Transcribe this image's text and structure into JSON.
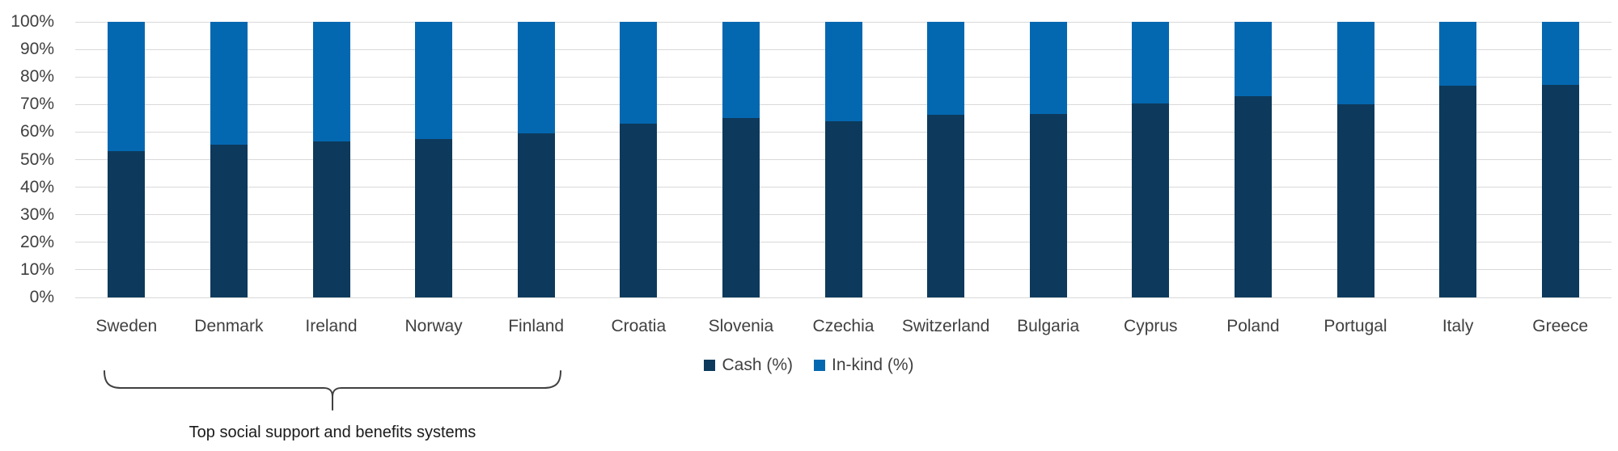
{
  "chart_data": {
    "type": "bar",
    "stacked": true,
    "percent_stacked": true,
    "categories": [
      "Sweden",
      "Denmark",
      "Ireland",
      "Norway",
      "Finland",
      "Croatia",
      "Slovenia",
      "Czechia",
      "Switzerland",
      "Bulgaria",
      "Cyprus",
      "Poland",
      "Portugal",
      "Italy",
      "Greece"
    ],
    "series": [
      {
        "name": "Cash (%)",
        "color": "#0d3a5c",
        "values": [
          53,
          55.5,
          56.5,
          57.5,
          59.6,
          63,
          65,
          64,
          66.3,
          66.7,
          70.4,
          72.9,
          70.1,
          76.8,
          77.2
        ]
      },
      {
        "name": "In-kind (%)",
        "color": "#0468b1",
        "values": [
          47,
          44.5,
          43.5,
          42.5,
          40.4,
          37,
          35,
          36,
          33.7,
          33.3,
          29.6,
          27.1,
          29.9,
          23.2,
          22.8
        ]
      }
    ],
    "title": "",
    "xlabel": "",
    "ylabel": "",
    "ylim": [
      0,
      100
    ],
    "y_tick_labels": [
      "100%",
      "90%",
      "80%",
      "70%",
      "60%",
      "50%",
      "40%",
      "30%",
      "20%",
      "10%",
      "0%"
    ],
    "grid": true,
    "legend_position": "bottom-center"
  },
  "annotation": {
    "bracket_label": "Top social support and benefits systems",
    "bracket_span_categories": [
      "Sweden",
      "Denmark",
      "Ireland",
      "Norway",
      "Finland"
    ]
  },
  "colors": {
    "cash": "#0d3a5c",
    "in_kind": "#0468b1",
    "gridline": "#d9d9d9",
    "axis_text": "#404040",
    "bracket": "#404040",
    "background": "#ffffff"
  }
}
